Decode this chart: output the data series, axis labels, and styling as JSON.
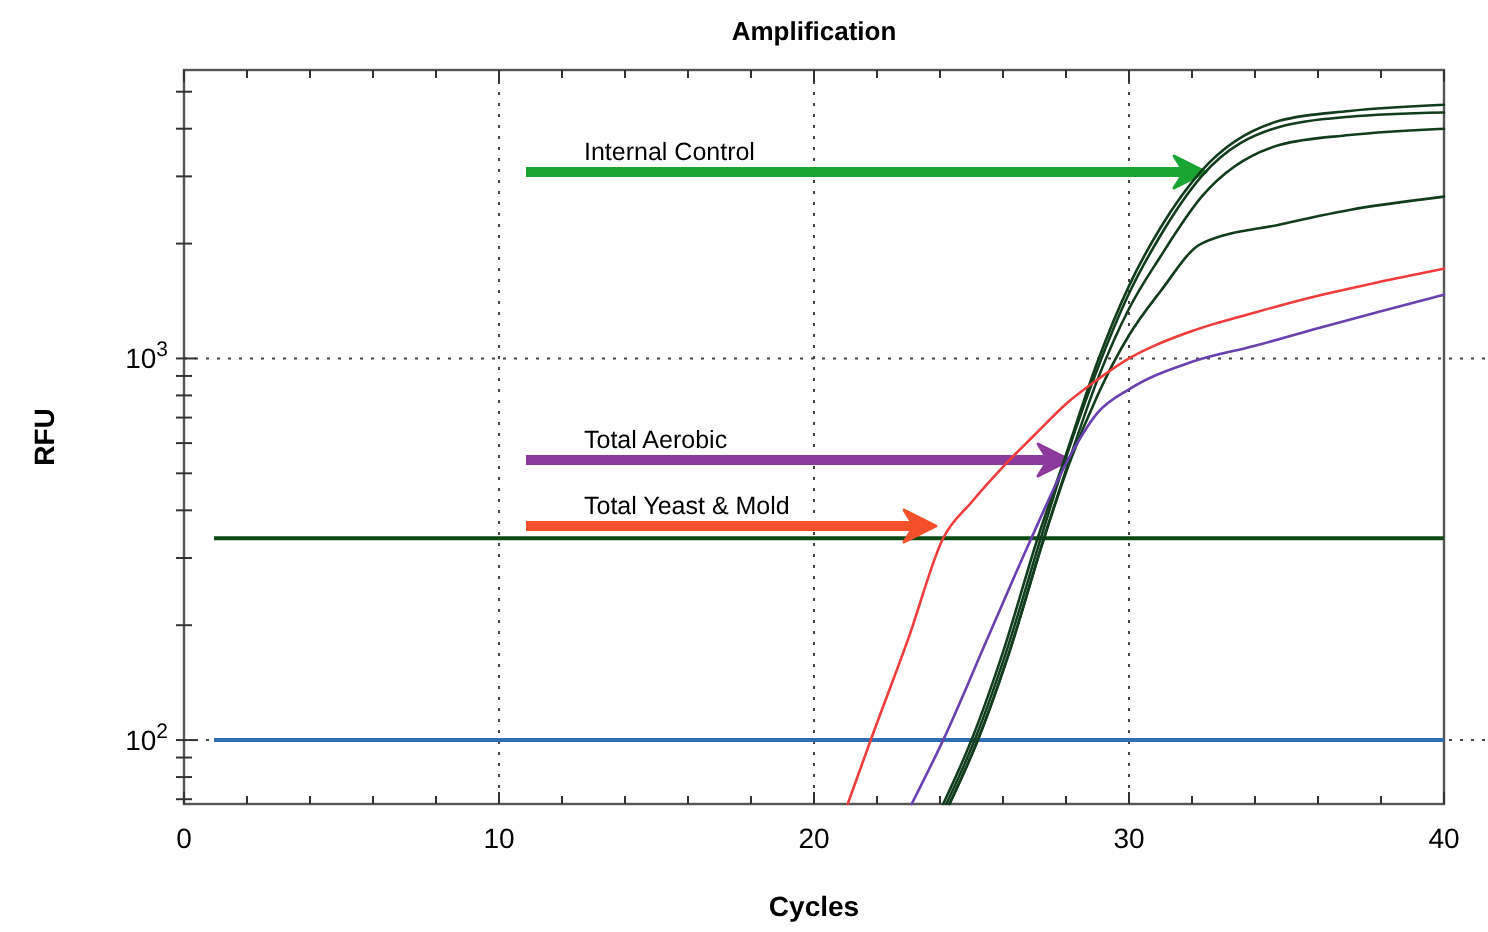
{
  "chart_data": {
    "type": "line",
    "title": "Amplification",
    "xlabel": "Cycles",
    "ylabel": "RFU",
    "log": "y",
    "grid": true,
    "marker": "none",
    "line_style": "solid",
    "xlim": [
      0,
      40
    ],
    "xticks": [
      0,
      {
        "value": 2,
        "label": null
      },
      {
        "value": 4,
        "label": null
      },
      {
        "value": 6,
        "label": null
      },
      {
        "value": 8,
        "label": null
      },
      10,
      {
        "value": 12,
        "label": null
      },
      {
        "value": 14,
        "label": null
      },
      {
        "value": 16,
        "label": null
      },
      {
        "value": 18,
        "label": null
      },
      20,
      {
        "value": 22,
        "label": null
      },
      {
        "value": 24,
        "label": null
      },
      {
        "value": 26,
        "label": null
      },
      {
        "value": 28,
        "label": null
      },
      30,
      {
        "value": 32,
        "label": null
      },
      {
        "value": 34,
        "label": null
      },
      {
        "value": 36,
        "label": null
      },
      {
        "value": 38,
        "label": null
      },
      40
    ],
    "ylim": [
      68,
      5700
    ],
    "yticks": [
      {
        "value": 70,
        "label": null
      },
      {
        "value": 80,
        "label": null
      },
      {
        "value": 90,
        "label": null
      },
      {
        "value": 100,
        "label": "10$^{2}$"
      },
      {
        "value": 200,
        "label": null
      },
      {
        "value": 300,
        "label": null
      },
      {
        "value": 400,
        "label": null
      },
      {
        "value": 500,
        "label": null
      },
      {
        "value": 600,
        "label": null
      },
      {
        "value": 700,
        "label": null
      },
      {
        "value": 800,
        "label": null
      },
      {
        "value": 900,
        "label": null
      },
      {
        "value": 1000,
        "label": "10$^{3}$"
      },
      {
        "value": 2000,
        "label": null
      },
      {
        "value": 3000,
        "label": null
      },
      {
        "value": 4000,
        "label": null
      },
      {
        "value": 5000,
        "label": null
      }
    ],
    "ref_lines": [
      {
        "axis": "y",
        "value": 338,
        "color": "#0d4a12"
      },
      {
        "axis": "y",
        "value": 100,
        "color": "#2f6db5"
      }
    ],
    "annotations": [
      "Internal Control",
      "Total Aerobic",
      "Total Yeast & Mold"
    ],
    "series": [
      {
        "color": "#123d1c",
        "x": [
          24.1,
          25,
          26,
          27.1,
          28,
          29,
          30,
          31,
          32.3,
          34.8,
          37,
          40
        ],
        "values": [
          68,
          100,
          170,
          338,
          560,
          980,
          1550,
          2200,
          3100,
          4200,
          4450,
          4620
        ]
      },
      {
        "color": "#123d1c",
        "x": [
          24.2,
          25.1,
          26.1,
          27.2,
          28,
          29,
          30,
          31,
          32.3,
          34.8,
          37,
          40
        ],
        "values": [
          68,
          100,
          170,
          338,
          550,
          940,
          1480,
          2100,
          3000,
          4050,
          4300,
          4410
        ]
      },
      {
        "color": "#123d1c",
        "x": [
          24.3,
          25.2,
          26.2,
          27.3,
          28.1,
          29,
          30,
          31,
          32.3,
          34.8,
          37,
          40
        ],
        "values": [
          68,
          100,
          170,
          338,
          540,
          880,
          1350,
          1850,
          2650,
          3630,
          3850,
          4000
        ]
      },
      {
        "color": "#123d1c",
        "x": [
          24.3,
          25.2,
          26.2,
          27.3,
          28.1,
          29,
          30,
          31,
          32.3,
          34.8,
          37,
          40
        ],
        "values": [
          68,
          100,
          170,
          338,
          530,
          800,
          1150,
          1500,
          2000,
          2245,
          2450,
          2655
        ]
      },
      {
        "color": "#f03c3c",
        "x": [
          21.07,
          21.8,
          23,
          24.1,
          25,
          26,
          27,
          28,
          29,
          30,
          32,
          34,
          36,
          38,
          40
        ],
        "values": [
          68,
          100,
          185,
          338,
          420,
          520,
          630,
          760,
          880,
          1000,
          1180,
          1320,
          1460,
          1590,
          1720
        ]
      },
      {
        "color": "#6a40b0",
        "x": [
          23.1,
          24.1,
          25.5,
          26.9,
          28.1,
          29,
          30,
          32,
          34,
          36,
          38,
          40
        ],
        "values": [
          68,
          100,
          184,
          338,
          550,
          720,
          830,
          980,
          1080,
          1200,
          1330,
          1470
        ]
      }
    ]
  }
}
